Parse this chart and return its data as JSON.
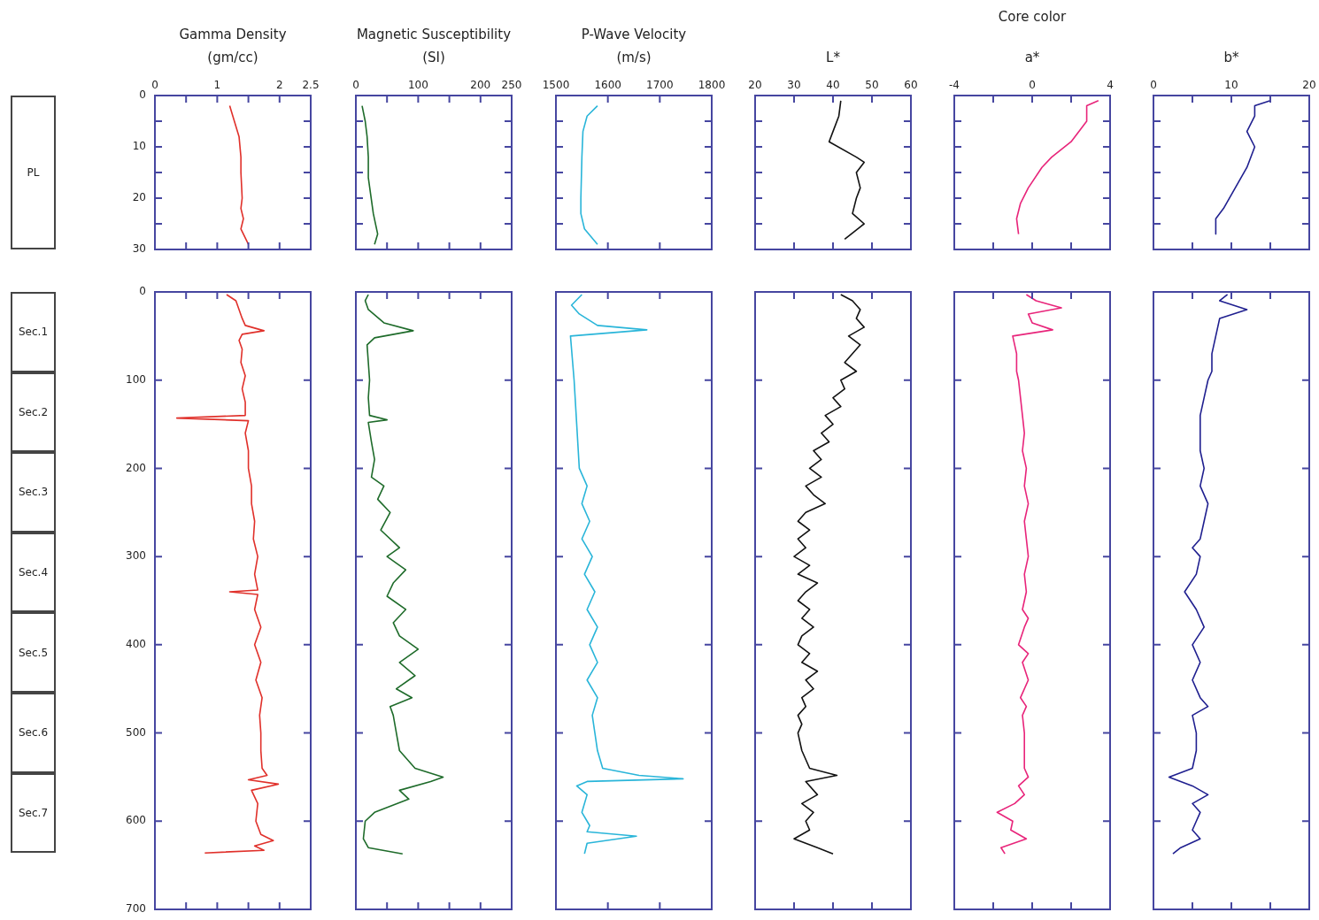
{
  "chart_data": [
    {
      "type": "line",
      "xlabel": "Gamma Density\n(gm/cc)",
      "xlim": [
        0,
        2.5
      ],
      "xticks": [
        0,
        {
          "value": 0.5,
          "label": null
        },
        1,
        {
          "value": 1.5,
          "label": null
        },
        2,
        2.5
      ],
      "ylim": [
        30,
        0
      ],
      "yticks": [
        0,
        {
          "value": 5,
          "label": null
        },
        10,
        {
          "value": 15,
          "label": null
        },
        20,
        {
          "value": 25,
          "label": null
        },
        30
      ],
      "annotations": [
        "PL"
      ],
      "series": [
        {
          "color": "#e0302a",
          "x": [
            1.2,
            1.25,
            1.35,
            1.38,
            1.38,
            1.4,
            1.38,
            1.42,
            1.38,
            1.5
          ],
          "values": [
            2,
            4,
            8,
            12,
            15,
            20,
            22,
            24,
            26,
            29
          ]
        }
      ]
    },
    {
      "type": "line",
      "xlabel": "Magnetic Susceptibility\n(SI)",
      "xlim": [
        0,
        250
      ],
      "xticks": [
        0,
        {
          "value": 50,
          "label": null
        },
        100,
        {
          "value": 150,
          "label": null
        },
        200,
        250
      ],
      "ylim": [
        30,
        0
      ],
      "yticks": [
        0,
        {
          "value": 5,
          "label": null
        },
        10,
        {
          "value": 15,
          "label": null
        },
        20,
        {
          "value": 25,
          "label": null
        },
        30
      ],
      "tick_labels": "x",
      "series": [
        {
          "color": "#1e6b2a",
          "x": [
            10,
            15,
            18,
            20,
            20,
            28,
            35,
            30
          ],
          "values": [
            2,
            5,
            8,
            12,
            16,
            23,
            27,
            29
          ]
        }
      ]
    },
    {
      "type": "line",
      "xlabel": "P-Wave Velocity\n(m/s)",
      "xlim": [
        1500,
        1800
      ],
      "xticks": [
        1500,
        1600,
        1700,
        1800
      ],
      "ylim": [
        30,
        0
      ],
      "yticks": [
        0,
        {
          "value": 5,
          "label": null
        },
        10,
        {
          "value": 15,
          "label": null
        },
        20,
        {
          "value": 25,
          "label": null
        },
        30
      ],
      "tick_labels": "x",
      "series": [
        {
          "color": "#29b5d9",
          "x": [
            1580,
            1560,
            1552,
            1550,
            1548,
            1548,
            1555,
            1580
          ],
          "values": [
            2,
            4,
            7,
            12,
            20,
            23,
            26,
            29
          ]
        }
      ]
    },
    {
      "type": "line",
      "xlabel": "L*",
      "xlim": [
        20,
        60
      ],
      "xticks": [
        20,
        30,
        40,
        50,
        60
      ],
      "ylim": [
        30,
        0
      ],
      "yticks": [
        0,
        {
          "value": 5,
          "label": null
        },
        10,
        {
          "value": 15,
          "label": null
        },
        20,
        {
          "value": 25,
          "label": null
        },
        30
      ],
      "tick_labels": "x",
      "series": [
        {
          "color": "#111111",
          "x": [
            42,
            41.5,
            40,
            39,
            46,
            48,
            46,
            47,
            46,
            45,
            48,
            43
          ],
          "values": [
            1,
            4,
            7,
            9,
            12,
            13,
            15,
            18,
            20,
            23,
            25,
            28
          ]
        }
      ]
    },
    {
      "type": "line",
      "title": "Core color",
      "xlabel": "a*",
      "xlim": [
        -4,
        4
      ],
      "xticks": [
        -4,
        {
          "value": -2,
          "label": null
        },
        0,
        {
          "value": 2,
          "label": null
        },
        4
      ],
      "ylim": [
        30,
        0
      ],
      "yticks": [
        0,
        {
          "value": 5,
          "label": null
        },
        10,
        {
          "value": 15,
          "label": null
        },
        20,
        {
          "value": 25,
          "label": null
        },
        30
      ],
      "tick_labels": "x",
      "series": [
        {
          "color": "#e8247a",
          "x": [
            3.4,
            2.8,
            2.8,
            2,
            1,
            0.5,
            -0.2,
            -0.6,
            -0.8,
            -0.7
          ],
          "values": [
            1,
            2,
            5,
            9,
            12,
            14,
            18,
            21,
            24,
            27
          ]
        }
      ]
    },
    {
      "type": "line",
      "xlabel": "b*",
      "xlim": [
        0,
        20
      ],
      "xticks": [
        0,
        {
          "value": 5,
          "label": null
        },
        10,
        {
          "value": 15,
          "label": null
        },
        20
      ],
      "ylim": [
        30,
        0
      ],
      "yticks": [
        0,
        {
          "value": 5,
          "label": null
        },
        10,
        {
          "value": 15,
          "label": null
        },
        20,
        {
          "value": 25,
          "label": null
        },
        30
      ],
      "tick_labels": "x",
      "series": [
        {
          "color": "#1f1f8f",
          "x": [
            15,
            13,
            13,
            12,
            13,
            12,
            10.5,
            9,
            8,
            8
          ],
          "values": [
            1,
            2,
            4,
            7,
            10,
            14,
            18,
            22,
            24,
            27
          ]
        }
      ]
    },
    {
      "type": "line",
      "xlim": [
        0,
        2.5
      ],
      "xticks": [
        0,
        {
          "value": 0.5,
          "label": null
        },
        1,
        {
          "value": 1.5,
          "label": null
        },
        2,
        2.5
      ],
      "ylim": [
        700,
        0
      ],
      "yticks": [
        0,
        100,
        200,
        300,
        400,
        500,
        600,
        700
      ],
      "tick_labels": "y",
      "annotations": [
        "Sec.1",
        "Sec.2",
        "Sec.3",
        "Sec.4",
        "Sec.5",
        "Sec.6",
        "Sec.7"
      ],
      "series": [
        {
          "color": "#e0302a",
          "x": [
            1.15,
            1.3,
            1.35,
            1.4,
            1.45,
            1.75,
            1.4,
            1.35,
            1.4,
            1.38,
            1.45,
            1.4,
            1.45,
            1.45,
            0.35,
            1.5,
            1.45,
            1.5,
            1.5,
            1.55,
            1.55,
            1.6,
            1.58,
            1.65,
            1.6,
            1.65,
            1.2,
            1.65,
            1.6,
            1.7,
            1.6,
            1.7,
            1.62,
            1.72,
            1.68,
            1.7,
            1.7,
            1.72,
            1.8,
            1.5,
            1.98,
            1.55,
            1.65,
            1.62,
            1.7,
            1.9,
            1.6,
            1.75,
            0.8
          ],
          "values": [
            3,
            10,
            20,
            30,
            38,
            44,
            48,
            55,
            65,
            80,
            95,
            110,
            125,
            140,
            143,
            146,
            160,
            180,
            200,
            220,
            240,
            260,
            280,
            300,
            320,
            338,
            340,
            343,
            360,
            380,
            400,
            420,
            440,
            460,
            480,
            500,
            520,
            540,
            548,
            553,
            558,
            565,
            580,
            600,
            615,
            622,
            628,
            633,
            636
          ]
        }
      ]
    },
    {
      "type": "line",
      "xlim": [
        0,
        250
      ],
      "xticks": [
        0,
        {
          "value": 50,
          "label": null
        },
        100,
        {
          "value": 150,
          "label": null
        },
        200,
        250
      ],
      "ylim": [
        700,
        0
      ],
      "yticks": [
        0,
        100,
        200,
        300,
        400,
        500,
        600,
        700
      ],
      "tick_labels": false,
      "series": [
        {
          "color": "#1e6b2a",
          "x": [
            20,
            15,
            20,
            45,
            92,
            30,
            18,
            20,
            22,
            20,
            22,
            50,
            20,
            25,
            30,
            25,
            45,
            35,
            55,
            40,
            70,
            50,
            80,
            60,
            50,
            80,
            60,
            70,
            100,
            70,
            95,
            65,
            90,
            55,
            60,
            65,
            70,
            95,
            140,
            120,
            70,
            85,
            30,
            15,
            12,
            20,
            75
          ],
          "values": [
            3,
            10,
            20,
            35,
            44,
            52,
            60,
            80,
            100,
            120,
            140,
            145,
            148,
            170,
            190,
            210,
            220,
            235,
            250,
            270,
            290,
            300,
            315,
            330,
            345,
            360,
            375,
            390,
            405,
            420,
            435,
            450,
            460,
            470,
            480,
            500,
            520,
            540,
            550,
            555,
            565,
            575,
            590,
            600,
            620,
            630,
            637
          ]
        }
      ]
    },
    {
      "type": "line",
      "xlim": [
        1500,
        1800
      ],
      "xticks": [
        1500,
        1600,
        1700,
        1800
      ],
      "ylim": [
        700,
        0
      ],
      "yticks": [
        0,
        100,
        200,
        300,
        400,
        500,
        600,
        700
      ],
      "tick_labels": false,
      "series": [
        {
          "color": "#29b5d9",
          "x": [
            1550,
            1530,
            1545,
            1580,
            1675,
            1528,
            1535,
            1540,
            1545,
            1560,
            1550,
            1565,
            1550,
            1570,
            1555,
            1575,
            1560,
            1580,
            1565,
            1580,
            1560,
            1580,
            1570,
            1575,
            1580,
            1590,
            1660,
            1745,
            1560,
            1540,
            1560,
            1550,
            1565,
            1560,
            1655,
            1560,
            1555
          ],
          "values": [
            3,
            15,
            25,
            38,
            43,
            50,
            100,
            150,
            200,
            220,
            240,
            260,
            280,
            300,
            320,
            340,
            360,
            380,
            400,
            420,
            440,
            460,
            480,
            500,
            520,
            540,
            548,
            552,
            555,
            560,
            570,
            590,
            605,
            612,
            617,
            625,
            637
          ]
        }
      ]
    },
    {
      "type": "line",
      "xlim": [
        20,
        60
      ],
      "xticks": [
        20,
        30,
        40,
        50,
        60
      ],
      "ylim": [
        700,
        0
      ],
      "yticks": [
        0,
        100,
        200,
        300,
        400,
        500,
        600,
        700
      ],
      "tick_labels": false,
      "series": [
        {
          "color": "#111111",
          "x": [
            42,
            45,
            47,
            46,
            48,
            44,
            47,
            45,
            43,
            46,
            42,
            43,
            40,
            42,
            38,
            40,
            37,
            39,
            35,
            37,
            34,
            37,
            33,
            35,
            38,
            33,
            31,
            34,
            31,
            33,
            30,
            34,
            31,
            36,
            33,
            31,
            34,
            32,
            35,
            32,
            31,
            34,
            32,
            36,
            33,
            35,
            32,
            33,
            31,
            32,
            31,
            32,
            34,
            41,
            33,
            36,
            32,
            35,
            33,
            34,
            30,
            36,
            40
          ],
          "values": [
            3,
            10,
            20,
            30,
            40,
            50,
            60,
            70,
            80,
            90,
            100,
            110,
            120,
            130,
            140,
            150,
            160,
            170,
            180,
            190,
            200,
            210,
            220,
            230,
            240,
            250,
            260,
            270,
            280,
            290,
            300,
            310,
            320,
            330,
            340,
            350,
            360,
            370,
            380,
            390,
            400,
            410,
            420,
            430,
            440,
            450,
            460,
            470,
            480,
            490,
            500,
            520,
            540,
            548,
            555,
            570,
            580,
            590,
            600,
            610,
            620,
            630,
            637
          ]
        }
      ]
    },
    {
      "type": "line",
      "xlim": [
        -4,
        4
      ],
      "xticks": [
        -4,
        {
          "value": -2,
          "label": null
        },
        0,
        {
          "value": 2,
          "label": null
        },
        4
      ],
      "ylim": [
        700,
        0
      ],
      "yticks": [
        0,
        100,
        200,
        300,
        400,
        500,
        600,
        700
      ],
      "tick_labels": false,
      "series": [
        {
          "color": "#e8247a",
          "x": [
            -0.3,
            0.2,
            1.5,
            -0.2,
            0,
            1.05,
            -1,
            -0.8,
            -0.8,
            -0.7,
            -0.6,
            -0.5,
            -0.4,
            -0.5,
            -0.3,
            -0.4,
            -0.2,
            -0.4,
            -0.3,
            -0.2,
            -0.4,
            -0.3,
            -0.5,
            -0.2,
            -0.4,
            -0.7,
            -0.2,
            -0.5,
            -0.2,
            -0.6,
            -0.3,
            -0.5,
            -0.4,
            -0.4,
            -0.2,
            -0.7,
            -0.4,
            -0.9,
            -1.8,
            -1,
            -1.1,
            -0.3,
            -1.6,
            -1.4
          ],
          "values": [
            3,
            10,
            18,
            25,
            35,
            43,
            50,
            70,
            90,
            100,
            120,
            140,
            160,
            180,
            200,
            220,
            240,
            260,
            280,
            300,
            320,
            340,
            360,
            370,
            380,
            400,
            410,
            420,
            440,
            460,
            470,
            480,
            500,
            540,
            550,
            560,
            570,
            580,
            590,
            600,
            610,
            620,
            630,
            637
          ]
        }
      ]
    },
    {
      "type": "line",
      "xlim": [
        0,
        20
      ],
      "xticks": [
        0,
        {
          "value": 5,
          "label": null
        },
        10,
        {
          "value": 15,
          "label": null
        },
        20
      ],
      "ylim": [
        700,
        0
      ],
      "yticks": [
        0,
        100,
        200,
        300,
        400,
        500,
        600,
        700
      ],
      "tick_labels": false,
      "series": [
        {
          "color": "#1f1f8f",
          "x": [
            9.5,
            8.5,
            12,
            8.5,
            8,
            7.5,
            7.5,
            7,
            6.5,
            6,
            6,
            6.5,
            6,
            7,
            6.5,
            6,
            5,
            6,
            5.5,
            4,
            5.5,
            6.5,
            5,
            6,
            5,
            6,
            7,
            5,
            5.5,
            5.5,
            5,
            2,
            5,
            7,
            5,
            6,
            5.5,
            5,
            6,
            3.5,
            2.5
          ],
          "values": [
            3,
            10,
            20,
            30,
            50,
            70,
            90,
            100,
            120,
            140,
            180,
            200,
            220,
            240,
            260,
            280,
            290,
            300,
            320,
            340,
            360,
            380,
            400,
            420,
            440,
            460,
            470,
            480,
            500,
            520,
            540,
            550,
            560,
            570,
            580,
            590,
            600,
            610,
            620,
            630,
            637
          ]
        }
      ]
    }
  ]
}
